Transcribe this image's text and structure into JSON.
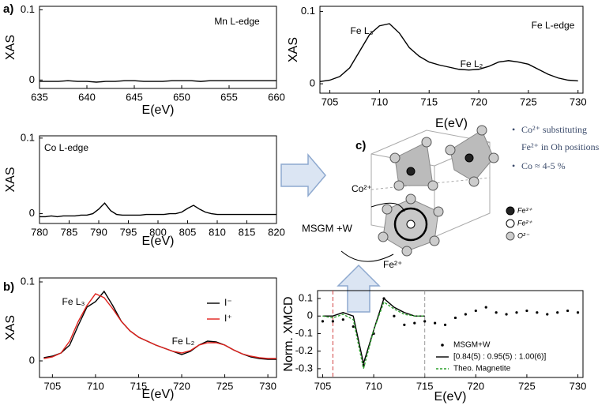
{
  "panel_labels": [
    "a)",
    "b)",
    "c)"
  ],
  "chart_data": [
    {
      "type": "line",
      "ylabel": "XAS",
      "xlabel": "E(eV)",
      "annotations": [
        "Mn L-edge"
      ],
      "x": [
        635,
        636,
        637,
        638,
        639,
        640,
        641,
        642,
        643,
        644,
        645,
        646,
        647,
        648,
        649,
        650,
        651,
        652,
        653,
        654,
        655,
        656,
        657,
        658,
        659,
        660
      ],
      "values": [
        -0.002,
        -0.002,
        -0.002,
        -0.001,
        -0.002,
        -0.002,
        -0.003,
        -0.002,
        -0.002,
        -0.001,
        -0.001,
        -0.002,
        -0.002,
        -0.002,
        -0.001,
        -0.001,
        -0.001,
        -0.002,
        -0.001,
        -0.001,
        -0.001,
        -0.001,
        -0.001,
        -0.001,
        -0.001,
        -0.001
      ],
      "color": "#000000",
      "xlim": [
        635,
        660
      ],
      "xticks": [
        635,
        640,
        645,
        650,
        655,
        660
      ],
      "ylim": [
        -0.012,
        0.105
      ],
      "yticks": [
        0,
        0.1
      ]
    },
    {
      "type": "line",
      "ylabel": "XAS",
      "xlabel": "E(eV)",
      "annotations": [
        "Fe L-edge",
        "Fe L₃",
        "Fe L₂"
      ],
      "x": [
        704,
        705,
        706,
        707,
        708,
        709,
        710,
        711,
        712,
        713,
        714,
        715,
        716,
        717,
        718,
        719,
        720,
        721,
        722,
        723,
        724,
        725,
        726,
        727,
        728,
        729,
        730
      ],
      "values": [
        0.003,
        0.005,
        0.01,
        0.022,
        0.045,
        0.068,
        0.08,
        0.083,
        0.07,
        0.05,
        0.038,
        0.03,
        0.026,
        0.023,
        0.02,
        0.019,
        0.02,
        0.024,
        0.03,
        0.032,
        0.03,
        0.027,
        0.02,
        0.013,
        0.008,
        0.005,
        0.004
      ],
      "color": "#000000",
      "xlim": [
        704,
        730.5
      ],
      "xticks": [
        705,
        710,
        715,
        720,
        725,
        730
      ],
      "ylim": [
        -0.013,
        0.107
      ],
      "yticks": [
        0,
        0.1
      ]
    },
    {
      "type": "line",
      "ylabel": "XAS",
      "xlabel": "E(eV)",
      "annotations": [
        "Co L-edge"
      ],
      "x": [
        780,
        781,
        782,
        783,
        784,
        785,
        786,
        787,
        788,
        789,
        790,
        791,
        792,
        793,
        794,
        795,
        796,
        797,
        798,
        799,
        800,
        801,
        802,
        803,
        804,
        805,
        806,
        807,
        808,
        809,
        810,
        811,
        812,
        813,
        814,
        815,
        816,
        817,
        818,
        819,
        820
      ],
      "values": [
        -0.004,
        -0.004,
        -0.003,
        -0.004,
        -0.003,
        -0.003,
        -0.003,
        -0.002,
        -0.002,
        0.0,
        0.006,
        0.014,
        0.004,
        -0.001,
        -0.002,
        -0.002,
        -0.002,
        -0.002,
        -0.001,
        -0.001,
        -0.001,
        -0.001,
        0.0,
        0.0,
        0.002,
        0.007,
        0.011,
        0.006,
        0.002,
        0.0,
        -0.001,
        -0.001,
        -0.001,
        -0.001,
        -0.001,
        -0.001,
        -0.001,
        -0.001,
        -0.001,
        -0.001,
        -0.001
      ],
      "color": "#000000",
      "xlim": [
        780,
        820
      ],
      "xticks": [
        780,
        785,
        790,
        795,
        800,
        805,
        810,
        815,
        820
      ],
      "ylim": [
        -0.013,
        0.103
      ],
      "yticks": [
        0,
        0.1
      ]
    },
    {
      "type": "line",
      "ylabel": "XAS",
      "xlabel": "E(eV)",
      "annotations": [
        "Fe L₃",
        "Fe L₂"
      ],
      "x": [
        704,
        705,
        706,
        707,
        708,
        709,
        710,
        711,
        712,
        713,
        714,
        715,
        716,
        717,
        718,
        719,
        720,
        721,
        722,
        723,
        724,
        725,
        726,
        727,
        728,
        729,
        730,
        731
      ],
      "series": [
        {
          "name": "I⁻",
          "color": "#000000",
          "mode": "line",
          "values": [
            0.004,
            0.006,
            0.01,
            0.02,
            0.045,
            0.068,
            0.075,
            0.088,
            0.07,
            0.05,
            0.038,
            0.03,
            0.025,
            0.02,
            0.016,
            0.012,
            0.008,
            0.012,
            0.02,
            0.025,
            0.024,
            0.02,
            0.014,
            0.009,
            0.005,
            0.003,
            0.002,
            0.002
          ]
        },
        {
          "name": "I⁺",
          "color": "#e0201b",
          "mode": "line",
          "values": [
            0.003,
            0.005,
            0.01,
            0.025,
            0.05,
            0.07,
            0.085,
            0.08,
            0.066,
            0.05,
            0.038,
            0.03,
            0.025,
            0.02,
            0.016,
            0.012,
            0.01,
            0.013,
            0.02,
            0.023,
            0.023,
            0.02,
            0.014,
            0.009,
            0.006,
            0.004,
            0.003,
            0.003
          ]
        }
      ],
      "xlim": [
        703.5,
        731
      ],
      "xticks": [
        705,
        710,
        715,
        720,
        725,
        730
      ],
      "ylim": [
        -0.021,
        0.105
      ],
      "yticks": [
        0,
        0.1
      ]
    },
    {
      "type": "line",
      "ylabel": "Norm. XMCD",
      "xlabel": "E(eV)",
      "x": [
        705,
        706,
        707,
        708,
        709,
        710,
        711,
        712,
        713,
        714,
        715,
        716,
        717,
        718,
        719,
        720,
        721,
        722,
        723,
        724,
        725,
        726,
        727,
        728,
        729,
        730
      ],
      "series": [
        {
          "name": "MSGM+W",
          "color": "#000000",
          "mode": "markers",
          "values": [
            -0.03,
            -0.03,
            -0.02,
            -0.06,
            -0.28,
            -0.1,
            0.1,
            0.0,
            -0.05,
            -0.04,
            -0.03,
            -0.04,
            -0.05,
            -0.01,
            0.01,
            0.03,
            0.05,
            0.02,
            0.01,
            0.02,
            0.03,
            0.02,
            0.01,
            0.02,
            0.03,
            0.02
          ]
        },
        {
          "name": "[0.84(5) : 0.95(5) : 1.00(6)]",
          "color": "#000000",
          "mode": "line",
          "values": [
            0.0,
            0.0,
            0.02,
            0.0,
            -0.27,
            -0.08,
            0.1,
            0.05,
            0.02,
            0.0,
            0.0,
            null,
            null,
            null,
            null,
            null,
            null,
            null,
            null,
            null,
            null,
            null,
            null,
            null,
            null,
            null
          ]
        },
        {
          "name": "Theo. Magnetite",
          "color": "#2ca02c",
          "mode": "dashed",
          "values": [
            0.0,
            -0.01,
            0.01,
            -0.02,
            -0.3,
            -0.08,
            0.08,
            0.04,
            0.01,
            0.0,
            0.0,
            null,
            null,
            null,
            null,
            null,
            null,
            null,
            null,
            null,
            null,
            null,
            null,
            null,
            null,
            null
          ]
        }
      ],
      "vlines": [
        706,
        715
      ],
      "vline_colors": [
        "#d04040",
        "#999999"
      ],
      "xlim": [
        704.5,
        730.5
      ],
      "xticks": [
        705,
        710,
        715,
        720,
        725,
        730
      ],
      "ylim": [
        -0.35,
        0.145
      ],
      "yticks": [
        0.1,
        0,
        -0.1,
        -0.2,
        -0.3
      ]
    }
  ],
  "diagram": {
    "notes": [
      "Co²⁺ substituting",
      "Fe²⁺ in Oh positions",
      "Co ≈ 4-5 %"
    ],
    "labels": [
      "Co²⁺",
      "MSGM +W",
      "Fe²⁺"
    ],
    "legend": [
      "Fe³⁺",
      "Fe²⁺",
      "O²⁻"
    ]
  }
}
